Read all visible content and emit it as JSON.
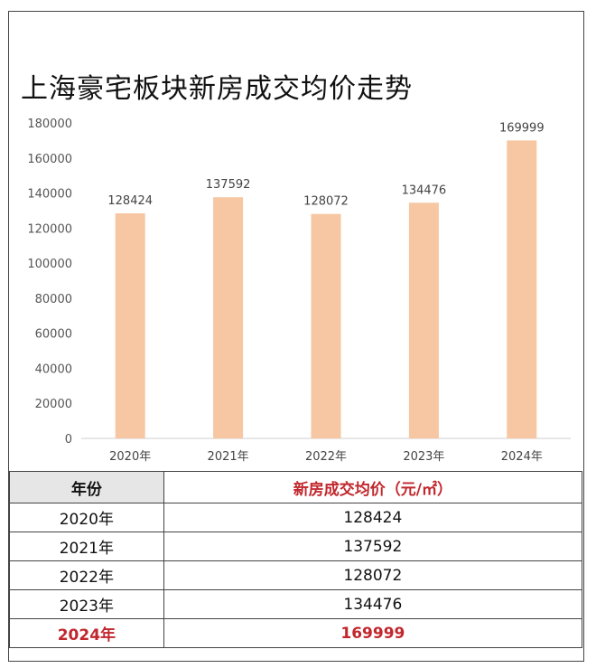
{
  "title": "上海豪宅板块新房成交均价走势",
  "chart_data": {
    "type": "bar",
    "categories": [
      "2020年",
      "2021年",
      "2022年",
      "2023年",
      "2024年"
    ],
    "values": [
      128424,
      137592,
      128072,
      134476,
      169999
    ],
    "ylim": [
      0,
      180000
    ],
    "yticks": [
      0,
      20000,
      40000,
      60000,
      80000,
      100000,
      120000,
      140000,
      160000,
      180000
    ],
    "bar_color": "#f6c7a2",
    "grid": false,
    "data_labels": true
  },
  "table": {
    "headers": [
      "年份",
      "新房成交均价（元/㎡）"
    ],
    "rows": [
      [
        "2020年",
        "128424"
      ],
      [
        "2021年",
        "137592"
      ],
      [
        "2022年",
        "128072"
      ],
      [
        "2023年",
        "134476"
      ],
      [
        "2024年",
        "169999"
      ]
    ],
    "highlight_color": "#c1272d"
  }
}
